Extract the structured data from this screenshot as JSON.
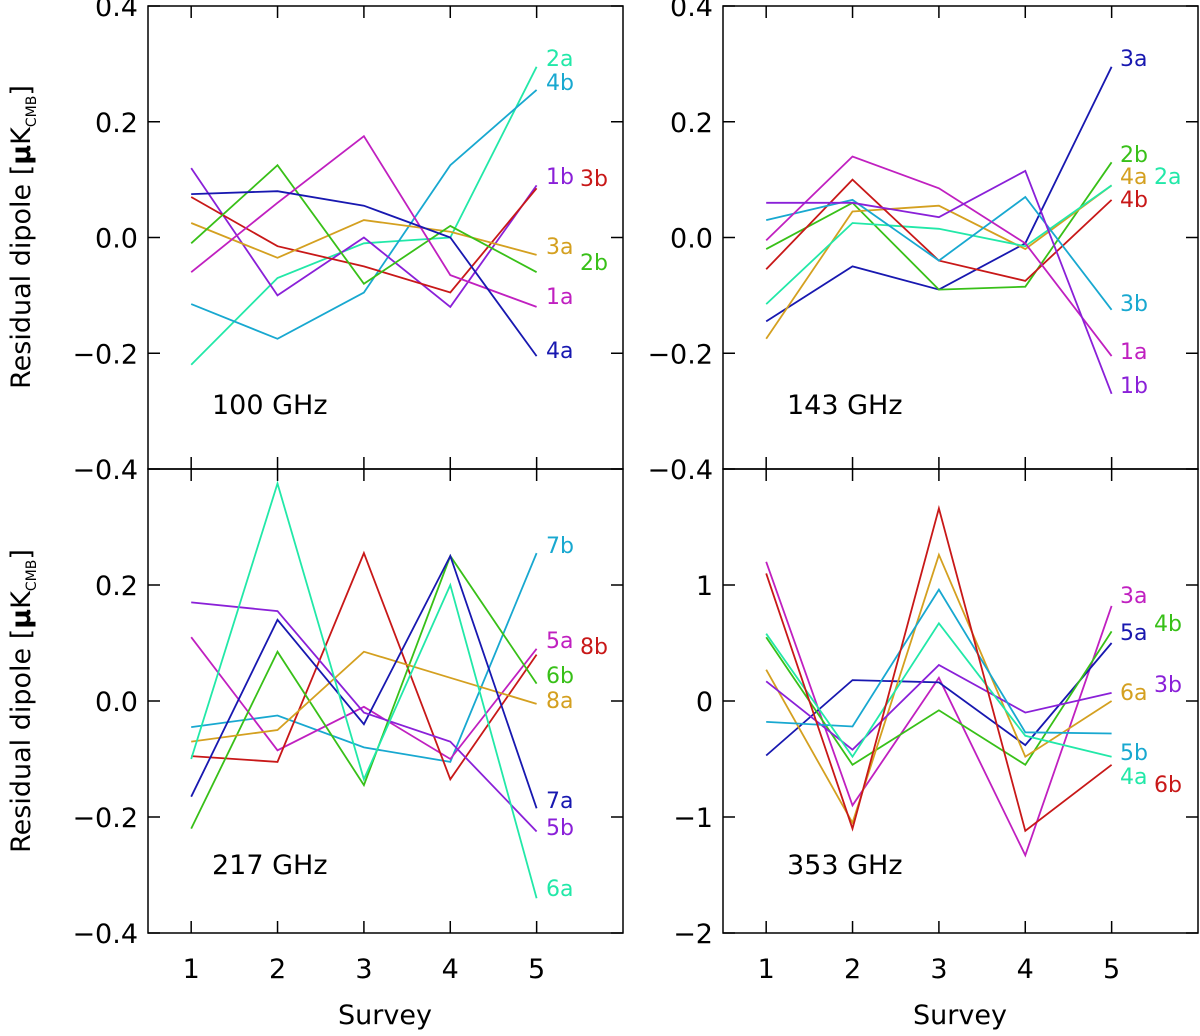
{
  "figure": {
    "ylabel_text": "Residual dipole",
    "ylabel_unit_mu": "μ",
    "ylabel_unit_k": "K",
    "ylabel_unit_sub": "CMB",
    "xlabel": "Survey"
  },
  "chart_data": [
    {
      "type": "line",
      "title": "100 GHz",
      "xlabel": "",
      "ylabel": "Residual dipole [μK_CMB]",
      "x": [
        1,
        2,
        3,
        4,
        5
      ],
      "xtick_labels": [
        "1",
        "2",
        "3",
        "4",
        "5"
      ],
      "ylim": [
        -0.4,
        0.4
      ],
      "yticks": [
        -0.4,
        -0.2,
        0.0,
        0.2,
        0.4
      ],
      "ytick_labels": [
        "−0.4",
        "−0.2",
        "0.0",
        "0.2",
        "0.4"
      ],
      "series": [
        {
          "name": "2a",
          "color": "#22e8a8",
          "values": [
            -0.22,
            -0.07,
            -0.01,
            0.0,
            0.295
          ]
        },
        {
          "name": "4b",
          "color": "#18a8d0",
          "values": [
            -0.115,
            -0.175,
            -0.095,
            0.125,
            0.255
          ]
        },
        {
          "name": "1b",
          "color": "#8a20d8",
          "values": [
            0.12,
            -0.1,
            0.0,
            -0.12,
            0.09
          ]
        },
        {
          "name": "3b",
          "color": "#c81818",
          "values": [
            0.07,
            -0.015,
            -0.05,
            -0.095,
            0.085
          ]
        },
        {
          "name": "3a",
          "color": "#d4a020",
          "values": [
            0.025,
            -0.035,
            0.03,
            0.01,
            -0.03
          ]
        },
        {
          "name": "2b",
          "color": "#38c018",
          "values": [
            -0.01,
            0.125,
            -0.08,
            0.02,
            -0.06
          ]
        },
        {
          "name": "1a",
          "color": "#c020c0",
          "values": [
            -0.06,
            0.06,
            0.175,
            -0.065,
            -0.12
          ]
        },
        {
          "name": "4a",
          "color": "#1818b0",
          "values": [
            0.075,
            0.08,
            0.055,
            0.0,
            -0.205
          ]
        }
      ]
    },
    {
      "type": "line",
      "title": "143 GHz",
      "xlabel": "",
      "ylabel": "",
      "x": [
        1,
        2,
        3,
        4,
        5
      ],
      "xtick_labels": [
        "1",
        "2",
        "3",
        "4",
        "5"
      ],
      "ylim": [
        -0.4,
        0.4
      ],
      "yticks": [
        -0.4,
        -0.2,
        0.0,
        0.2,
        0.4
      ],
      "ytick_labels": [
        "−0.4",
        "−0.2",
        "0.0",
        "0.2",
        "0.4"
      ],
      "series": [
        {
          "name": "3a",
          "color": "#1818b0",
          "values": [
            -0.145,
            -0.05,
            -0.09,
            -0.01,
            0.295
          ]
        },
        {
          "name": "2b",
          "color": "#38c018",
          "values": [
            -0.02,
            0.06,
            -0.09,
            -0.085,
            0.13
          ]
        },
        {
          "name": "4a",
          "color": "#d4a020",
          "values": [
            -0.175,
            0.045,
            0.055,
            -0.02,
            0.09
          ]
        },
        {
          "name": "2a",
          "color": "#22e8a8",
          "values": [
            -0.115,
            0.025,
            0.015,
            -0.015,
            0.09
          ]
        },
        {
          "name": "4b",
          "color": "#c81818",
          "values": [
            -0.055,
            0.1,
            -0.04,
            -0.075,
            0.065
          ]
        },
        {
          "name": "3b",
          "color": "#18a8d0",
          "values": [
            0.03,
            0.065,
            -0.04,
            0.07,
            -0.125
          ]
        },
        {
          "name": "1a",
          "color": "#c020c0",
          "values": [
            -0.005,
            0.14,
            0.085,
            -0.01,
            -0.205
          ]
        },
        {
          "name": "1b",
          "color": "#8a20d8",
          "values": [
            0.06,
            0.06,
            0.035,
            0.115,
            -0.27
          ]
        }
      ]
    },
    {
      "type": "line",
      "title": "217 GHz",
      "xlabel": "Survey",
      "ylabel": "Residual dipole [μK_CMB]",
      "x": [
        1,
        2,
        3,
        4,
        5
      ],
      "xtick_labels": [
        "1",
        "2",
        "3",
        "4",
        "5"
      ],
      "ylim": [
        -0.4,
        0.4
      ],
      "yticks": [
        -0.4,
        -0.2,
        0.0,
        0.2
      ],
      "ytick_labels": [
        "−0.4",
        "−0.2",
        "0.0",
        "0.2"
      ],
      "series": [
        {
          "name": "7b",
          "color": "#18a8d0",
          "values": [
            -0.045,
            -0.025,
            -0.08,
            -0.105,
            0.255
          ]
        },
        {
          "name": "5a",
          "color": "#c020c0",
          "values": [
            0.11,
            -0.085,
            -0.01,
            -0.1,
            0.09
          ]
        },
        {
          "name": "8b",
          "color": "#c81818",
          "values": [
            -0.095,
            -0.105,
            0.255,
            -0.135,
            0.08
          ]
        },
        {
          "name": "6b",
          "color": "#38c018",
          "values": [
            -0.22,
            0.085,
            -0.145,
            0.25,
            0.03
          ]
        },
        {
          "name": "8a",
          "color": "#d4a020",
          "values": [
            -0.07,
            -0.05,
            0.085,
            0.04,
            -0.005
          ]
        },
        {
          "name": "7a",
          "color": "#1818b0",
          "values": [
            -0.165,
            0.14,
            -0.04,
            0.25,
            -0.185
          ]
        },
        {
          "name": "5b",
          "color": "#8a20d8",
          "values": [
            0.17,
            0.155,
            -0.02,
            -0.07,
            -0.225
          ]
        },
        {
          "name": "6a",
          "color": "#22e8a8",
          "values": [
            -0.1,
            0.375,
            -0.135,
            0.2,
            -0.34
          ]
        }
      ]
    },
    {
      "type": "line",
      "title": "353 GHz",
      "xlabel": "Survey",
      "ylabel": "",
      "x": [
        1,
        2,
        3,
        4,
        5
      ],
      "xtick_labels": [
        "1",
        "2",
        "3",
        "4",
        "5"
      ],
      "ylim": [
        -2,
        2
      ],
      "yticks": [
        -2,
        -1,
        0,
        1
      ],
      "ytick_labels": [
        "−2",
        "−1",
        "0",
        "1"
      ],
      "series": [
        {
          "name": "3a",
          "color": "#c020c0",
          "values": [
            1.2,
            -0.9,
            0.2,
            -1.33,
            0.82
          ]
        },
        {
          "name": "5a",
          "color": "#1818b0",
          "values": [
            -0.47,
            0.18,
            0.16,
            -0.38,
            0.5
          ]
        },
        {
          "name": "4b",
          "color": "#38c018",
          "values": [
            0.55,
            -0.55,
            -0.08,
            -0.55,
            0.6
          ]
        },
        {
          "name": "6a",
          "color": "#d4a020",
          "values": [
            0.27,
            -1.05,
            1.26,
            -0.48,
            0.0
          ]
        },
        {
          "name": "3b",
          "color": "#8a20d8",
          "values": [
            0.17,
            -0.42,
            0.31,
            -0.1,
            0.07
          ]
        },
        {
          "name": "5b",
          "color": "#18a8d0",
          "values": [
            -0.18,
            -0.22,
            0.96,
            -0.27,
            -0.28
          ]
        },
        {
          "name": "4a",
          "color": "#22e8a8",
          "values": [
            0.58,
            -0.48,
            0.67,
            -0.3,
            -0.48
          ]
        },
        {
          "name": "6b",
          "color": "#c81818",
          "values": [
            1.1,
            -1.1,
            1.66,
            -1.12,
            -0.55
          ]
        }
      ]
    }
  ]
}
